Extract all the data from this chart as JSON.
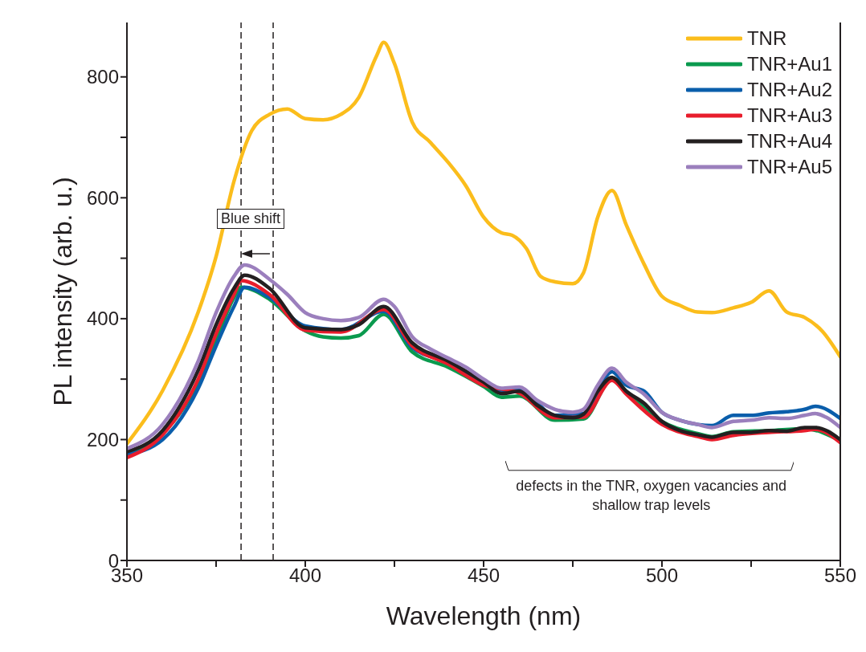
{
  "chart_data": {
    "type": "line",
    "xlabel": "Wavelength (nm)",
    "ylabel": "PL intensity (arb. u.)",
    "xlim": [
      350,
      550
    ],
    "ylim": [
      0,
      890
    ],
    "xticks": [
      350,
      {
        "value": 375,
        "label": null
      },
      400,
      {
        "value": 425,
        "label": null
      },
      450,
      {
        "value": 475,
        "label": null
      },
      500,
      {
        "value": 525,
        "label": null
      },
      550
    ],
    "yticks": [
      0,
      {
        "value": 100,
        "label": null
      },
      200,
      {
        "value": 300,
        "label": null
      },
      400,
      {
        "value": 500,
        "label": null
      },
      600,
      {
        "value": 700,
        "label": null
      },
      800
    ],
    "grid": false,
    "legend": "top right",
    "marker": "none",
    "line_style": "solid",
    "ref_lines": [
      {
        "axis": "x",
        "value": 382,
        "line_style": "dashed",
        "color": "#231f20"
      },
      {
        "axis": "x",
        "value": 391,
        "line_style": "dashed",
        "color": "#231f20"
      }
    ],
    "annotations": [
      "Blue shift",
      "defects in the TNR, oxygen vacancies and shallow trap levels"
    ],
    "series": [
      {
        "name": "TNR",
        "color": "#fbbd1c",
        "x": [
          350,
          360,
          370,
          375,
          380,
          385,
          390,
          395,
          400,
          405,
          410,
          415,
          420,
          422,
          425,
          430,
          435,
          440,
          445,
          450,
          455,
          458,
          462,
          466,
          470,
          475,
          478,
          482,
          486,
          490,
          495,
          500,
          505,
          510,
          514,
          520,
          525,
          530,
          535,
          540,
          545,
          550
        ],
        "values": [
          193,
          281,
          411,
          503,
          627,
          711,
          738,
          747,
          731,
          729,
          738,
          766,
          835,
          857,
          822,
          725,
          692,
          659,
          620,
          568,
          542,
          538,
          516,
          470,
          461,
          458,
          476,
          568,
          612,
          555,
          490,
          437,
          422,
          411,
          410,
          418,
          427,
          446,
          411,
          402,
          379,
          337
        ]
      },
      {
        "name": "TNR+Au1",
        "color": "#0a9a4e",
        "x": [
          350,
          360,
          370,
          375,
          380,
          382,
          390,
          400,
          405,
          410,
          415,
          422,
          430,
          440,
          450,
          455,
          460,
          470,
          478,
          486,
          490,
          500,
          510,
          514,
          520,
          530,
          540,
          550
        ],
        "values": [
          178,
          210,
          295,
          365,
          435,
          452,
          432,
          380,
          370,
          368,
          372,
          407,
          345,
          320,
          288,
          270,
          272,
          232,
          234,
          300,
          280,
          230,
          210,
          205,
          213,
          215,
          218,
          198
        ]
      },
      {
        "name": "TNR+Au2",
        "color": "#0a5eab",
        "x": [
          350,
          360,
          370,
          375,
          380,
          383,
          390,
          400,
          410,
          422,
          430,
          440,
          450,
          455,
          460,
          470,
          478,
          486,
          490,
          495,
          500,
          505,
          510,
          514,
          520,
          525,
          530,
          535,
          540,
          543,
          550
        ],
        "values": [
          175,
          200,
          285,
          355,
          420,
          452,
          435,
          388,
          382,
          412,
          352,
          328,
          295,
          280,
          283,
          240,
          243,
          312,
          290,
          280,
          245,
          232,
          225,
          223,
          240,
          240,
          244,
          246,
          250,
          255,
          235
        ]
      },
      {
        "name": "TNR+Au3",
        "color": "#e81d2c",
        "x": [
          350,
          360,
          370,
          375,
          380,
          382,
          390,
          400,
          410,
          422,
          430,
          440,
          450,
          460,
          470,
          478,
          486,
          490,
          500,
          510,
          514,
          520,
          530,
          540,
          543,
          550
        ],
        "values": [
          170,
          208,
          300,
          375,
          440,
          463,
          440,
          381,
          378,
          415,
          355,
          325,
          290,
          277,
          236,
          237,
          298,
          275,
          225,
          205,
          200,
          207,
          212,
          215,
          217,
          195
        ]
      },
      {
        "name": "TNR+Au4",
        "color": "#231f20",
        "x": [
          350,
          360,
          370,
          375,
          380,
          383,
          390,
          400,
          410,
          415,
          422,
          430,
          440,
          450,
          455,
          460,
          465,
          470,
          475,
          478,
          482,
          486,
          490,
          495,
          500,
          505,
          510,
          514,
          520,
          525,
          530,
          535,
          540,
          543,
          550
        ],
        "values": [
          180,
          215,
          315,
          390,
          450,
          472,
          450,
          385,
          382,
          390,
          420,
          360,
          330,
          295,
          276,
          280,
          257,
          240,
          236,
          242,
          280,
          303,
          280,
          260,
          230,
          215,
          208,
          204,
          212,
          212,
          215,
          214,
          220,
          220,
          200
        ]
      },
      {
        "name": "TNR+Au5",
        "color": "#9b7fbd",
        "x": [
          350,
          360,
          370,
          375,
          380,
          383,
          390,
          395,
          400,
          405,
          410,
          415,
          422,
          425,
          430,
          435,
          440,
          445,
          450,
          455,
          460,
          465,
          470,
          475,
          478,
          482,
          486,
          490,
          495,
          500,
          505,
          510,
          514,
          520,
          525,
          530,
          535,
          540,
          543,
          546,
          550
        ],
        "values": [
          185,
          225,
          330,
          410,
          470,
          489,
          465,
          440,
          410,
          400,
          397,
          402,
          432,
          420,
          370,
          350,
          335,
          320,
          300,
          285,
          287,
          265,
          250,
          245,
          250,
          290,
          318,
          295,
          275,
          245,
          232,
          225,
          220,
          230,
          232,
          236,
          235,
          240,
          243,
          237,
          220
        ]
      }
    ]
  }
}
